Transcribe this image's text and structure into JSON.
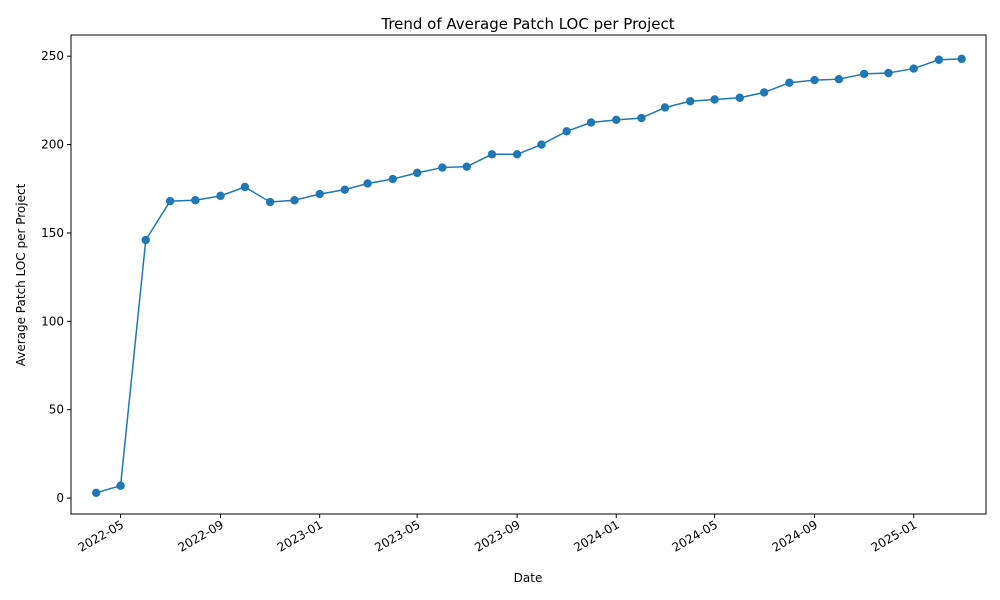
{
  "chart_data": {
    "type": "line",
    "title": "Trend of Average Patch LOC per Project",
    "xlabel": "Date",
    "ylabel": "Average Patch LOC per Project",
    "x_ticks": [
      "2022-05",
      "2022-09",
      "2023-01",
      "2023-05",
      "2023-09",
      "2024-01",
      "2024-05",
      "2024-09",
      "2025-01"
    ],
    "y_ticks": [
      0,
      50,
      100,
      150,
      200,
      250
    ],
    "xlim": [
      "2022-03-01",
      "2025-03-31"
    ],
    "ylim": [
      -9,
      262
    ],
    "grid": false,
    "legend": "none",
    "color": "#1f77b4",
    "series": [
      {
        "x": [
          "2022-04-01",
          "2022-05-01",
          "2022-06-01",
          "2022-07-01",
          "2022-08-01",
          "2022-09-01",
          "2022-10-01",
          "2022-11-01",
          "2022-12-01",
          "2023-01-01",
          "2023-02-01",
          "2023-03-01",
          "2023-04-01",
          "2023-05-01",
          "2023-06-01",
          "2023-07-01",
          "2023-08-01",
          "2023-09-01",
          "2023-10-01",
          "2023-11-01",
          "2023-12-01",
          "2024-01-01",
          "2024-02-01",
          "2024-03-01",
          "2024-04-01",
          "2024-05-01",
          "2024-06-01",
          "2024-07-01",
          "2024-08-01",
          "2024-09-01",
          "2024-10-01",
          "2024-11-01",
          "2024-12-01",
          "2025-01-01",
          "2025-02-01",
          "2025-03-01"
        ],
        "values": [
          3,
          7,
          146,
          168,
          168.5,
          171,
          176,
          167.5,
          168.5,
          172,
          174.5,
          178,
          180.5,
          184,
          187,
          187.5,
          194.5,
          194.5,
          200,
          207.5,
          212.5,
          214,
          215,
          221,
          224.5,
          225.5,
          226.5,
          229.5,
          235,
          236.5,
          237,
          240,
          240.5,
          243,
          248,
          248.5
        ]
      }
    ]
  }
}
